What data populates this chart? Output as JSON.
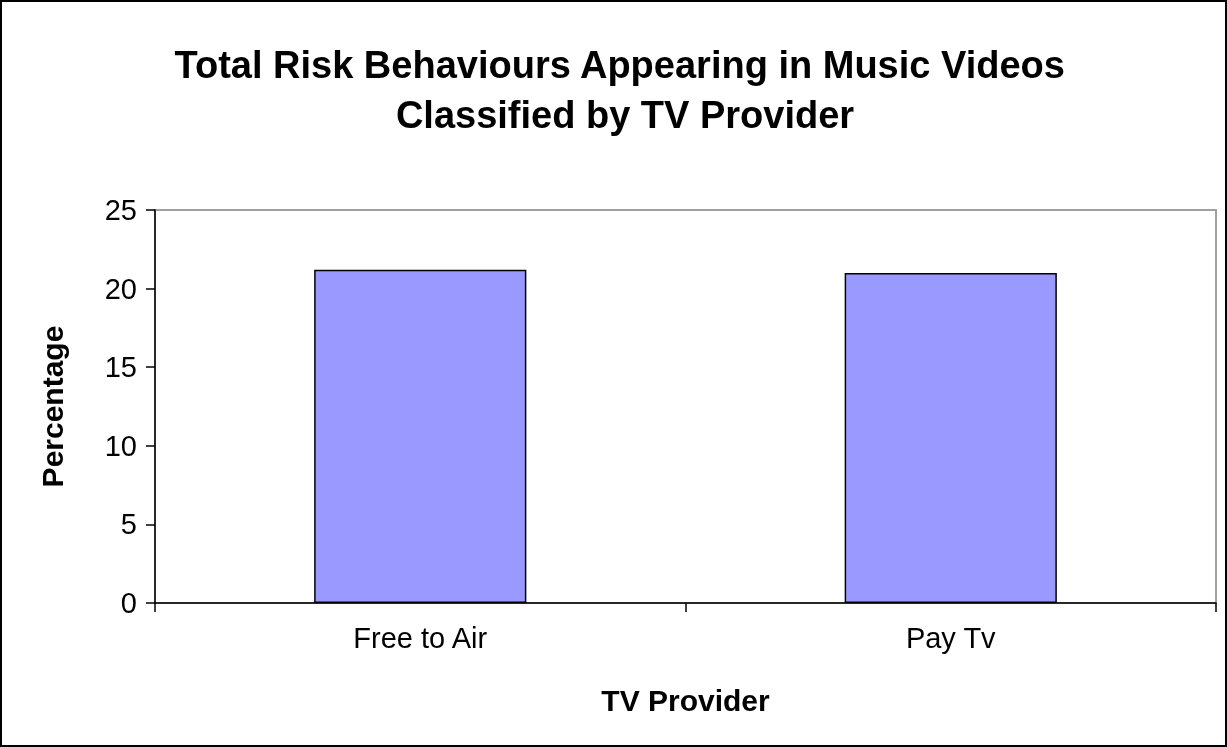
{
  "chart_data": {
    "type": "bar",
    "title": "Total Risk Behaviours Appearing in Music Videos Classified by TV Provider",
    "xlabel": "TV Provider",
    "ylabel": "Percentage",
    "categories": [
      "Free to Air",
      "Pay Tv"
    ],
    "values": [
      21.2,
      21.0
    ],
    "color": "#9999ff",
    "ylim": [
      0,
      25
    ],
    "yticks": [
      0,
      5,
      10,
      15,
      20,
      25
    ]
  }
}
